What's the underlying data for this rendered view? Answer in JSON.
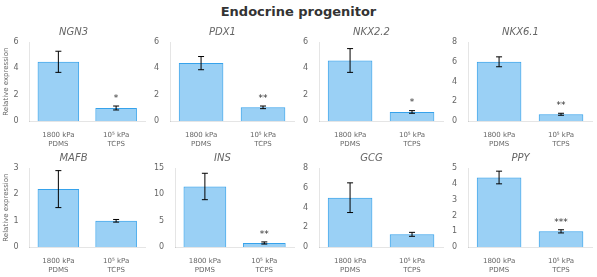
{
  "title": "Endocrine progenitor",
  "chart_data": [
    {
      "type": "bar",
      "title": "NGN3",
      "ylabel": "Relative expression",
      "categories": [
        "1800 kPa\nPDMS",
        "10⁵ kPa\nTCPS"
      ],
      "values": [
        4.5,
        1.0
      ],
      "errors": [
        0.8,
        0.15
      ],
      "ylim": [
        0,
        6
      ],
      "yticks": [
        0,
        2,
        4,
        6
      ],
      "grid": false,
      "annotations": [
        {
          "category": "10⁵ kPa\nTCPS",
          "text": "*"
        }
      ]
    },
    {
      "type": "bar",
      "title": "PDX1",
      "categories": [
        "1800 kPa\nPDMS",
        "10⁵ kPa\nTCPS"
      ],
      "values": [
        4.4,
        1.05
      ],
      "errors": [
        0.5,
        0.1
      ],
      "ylim": [
        0,
        6
      ],
      "yticks": [
        0,
        2,
        4,
        6
      ],
      "grid": false,
      "annotations": [
        {
          "category": "10⁵ kPa\nTCPS",
          "text": "**"
        }
      ]
    },
    {
      "type": "bar",
      "title": "NKX2.2",
      "categories": [
        "1800 kPa\nPDMS",
        "10⁵ kPa\nTCPS"
      ],
      "values": [
        4.6,
        0.7
      ],
      "errors": [
        0.9,
        0.1
      ],
      "ylim": [
        0,
        6
      ],
      "yticks": [
        0,
        2,
        4,
        6
      ],
      "grid": false,
      "annotations": [
        {
          "category": "10⁵ kPa\nTCPS",
          "text": "*"
        }
      ]
    },
    {
      "type": "bar",
      "title": "NKX6.1",
      "categories": [
        "1800 kPa\nPDMS",
        "10⁵ kPa\nTCPS"
      ],
      "values": [
        6.0,
        0.7
      ],
      "errors": [
        0.5,
        0.1
      ],
      "ylim": [
        0,
        8
      ],
      "yticks": [
        0,
        2,
        4,
        6,
        8
      ],
      "grid": false,
      "annotations": [
        {
          "category": "10⁵ kPa\nTCPS",
          "text": "**"
        }
      ]
    },
    {
      "type": "bar",
      "title": "MAFB",
      "ylabel": "Relative expression",
      "categories": [
        "1800 kPa\nPDMS",
        "10⁵ kPa\nTCPS"
      ],
      "values": [
        2.2,
        1.0
      ],
      "errors": [
        0.7,
        0.05
      ],
      "ylim": [
        0,
        3
      ],
      "yticks": [
        0,
        1,
        2,
        3
      ],
      "grid": false
    },
    {
      "type": "bar",
      "title": "INS",
      "categories": [
        "1800 kPa\nPDMS",
        "10⁵ kPa\nTCPS"
      ],
      "values": [
        11.5,
        0.8
      ],
      "errors": [
        2.5,
        0.2
      ],
      "ylim": [
        0,
        15
      ],
      "yticks": [
        0,
        5,
        10,
        15
      ],
      "grid": false,
      "annotations": [
        {
          "category": "10⁵ kPa\nTCPS",
          "text": "**"
        }
      ]
    },
    {
      "type": "bar",
      "title": "GCG",
      "categories": [
        "1800 kPa\nPDMS",
        "10⁵ kPa\nTCPS"
      ],
      "values": [
        5.0,
        1.3
      ],
      "errors": [
        1.5,
        0.2
      ],
      "ylim": [
        0,
        8
      ],
      "yticks": [
        0,
        2,
        4,
        6,
        8
      ],
      "grid": false
    },
    {
      "type": "bar",
      "title": "PPY",
      "categories": [
        "1800 kPa\nPDMS",
        "10⁵ kPa\nTCPS"
      ],
      "values": [
        4.4,
        1.0
      ],
      "errors": [
        0.4,
        0.1
      ],
      "ylim": [
        0,
        5
      ],
      "yticks": [
        0,
        1,
        2,
        3,
        4,
        5
      ],
      "grid": false,
      "annotations": [
        {
          "category": "10⁵ kPa\nTCPS",
          "text": "***"
        }
      ]
    }
  ]
}
